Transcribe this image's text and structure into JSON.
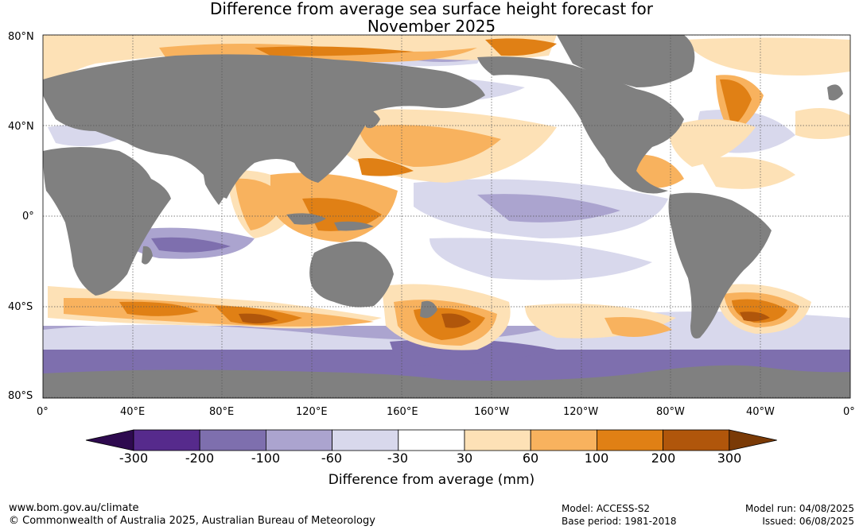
{
  "title": {
    "line1": "Difference from average sea surface height forecast for",
    "line2": "November 2025"
  },
  "map": {
    "lat_labels": [
      "80°N",
      "40°N",
      "0°",
      "40°S",
      "80°S"
    ],
    "lon_labels": [
      "0°",
      "40°E",
      "80°E",
      "120°E",
      "160°E",
      "160°W",
      "120°W",
      "80°W",
      "40°W",
      "0°"
    ],
    "colors": {
      "land": "#808080",
      "ocean_neutral": "#ffffff"
    }
  },
  "colorbar": {
    "ticks": [
      "-300",
      "-200",
      "-100",
      "-60",
      "-30",
      "30",
      "60",
      "100",
      "200",
      "300"
    ],
    "colors": [
      "#2e0a4f",
      "#562a8c",
      "#7e6fae",
      "#aba4cf",
      "#d8d8ec",
      "#ffffff",
      "#fde1b6",
      "#f8b25e",
      "#e08015",
      "#b0560b",
      "#7a3a06"
    ],
    "title": "Difference from average (mm)"
  },
  "footer": {
    "website": "www.bom.gov.au/climate",
    "copyright": "© Commonwealth of Australia 2025, Australian Bureau of Meteorology",
    "model": "Model: ACCESS-S2",
    "base_period": "Base period: 1981-2018",
    "model_run": "Model run: 04/08/2025",
    "issued": "Issued: 06/08/2025"
  }
}
